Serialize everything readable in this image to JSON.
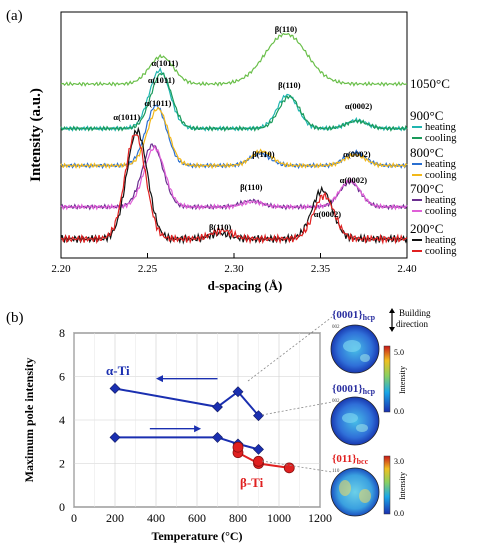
{
  "panel_a": {
    "label": "(a)",
    "xlabel": "d-spacing (Å)",
    "ylabel": "Intensity (a.u.)",
    "chart_data": {
      "type": "line",
      "xlim": [
        2.2,
        2.4
      ],
      "xticks": [
        "2.20",
        "2.25",
        "2.30",
        "2.35",
        "2.40"
      ],
      "temperatures": [
        {
          "label": "1050°C",
          "legend": [],
          "series": [
            {
              "name": "",
              "color": "#6abf4a",
              "peaks": [
                [
                  2.258,
                  0.55,
                  0.007
                ],
                [
                  2.33,
                  1.0,
                  0.012
                ]
              ],
              "base": 0.22
            }
          ]
        },
        {
          "label": "900°C",
          "legend": [
            "heating",
            "cooling"
          ],
          "series": [
            {
              "name": "heating",
              "color": "#1fb5b0",
              "peaks": [
                [
                  2.257,
                  1.0,
                  0.006
                ],
                [
                  2.331,
                  0.58,
                  0.006
                ],
                [
                  2.371,
                  0.14,
                  0.006
                ]
              ],
              "base": 0.06
            },
            {
              "name": "cooling",
              "color": "#1a9a5a",
              "peaks": [
                [
                  2.258,
                  0.95,
                  0.006
                ],
                [
                  2.332,
                  0.55,
                  0.006
                ],
                [
                  2.371,
                  0.13,
                  0.006
                ]
              ],
              "base": 0.06
            }
          ]
        },
        {
          "label": "800°C",
          "legend": [
            "heating",
            "cooling"
          ],
          "series": [
            {
              "name": "heating",
              "color": "#2a6fd0",
              "peaks": [
                [
                  2.255,
                  1.0,
                  0.006
                ],
                [
                  2.315,
                  0.2,
                  0.006
                ],
                [
                  2.37,
                  0.22,
                  0.006
                ]
              ],
              "base": 0.04
            },
            {
              "name": "cooling",
              "color": "#f2b81a",
              "peaks": [
                [
                  2.256,
                  0.95,
                  0.006
                ],
                [
                  2.316,
                  0.24,
                  0.006
                ],
                [
                  2.37,
                  0.18,
                  0.006
                ]
              ],
              "base": 0.04
            }
          ]
        },
        {
          "label": "700°C",
          "legend": [
            "heating",
            "cooling"
          ],
          "series": [
            {
              "name": "heating",
              "color": "#6a2f8f",
              "peaks": [
                [
                  2.253,
                  1.0,
                  0.006
                ],
                [
                  2.31,
                  0.1,
                  0.006
                ],
                [
                  2.367,
                  0.4,
                  0.006
                ]
              ],
              "base": 0.05
            },
            {
              "name": "cooling",
              "color": "#e060d8",
              "peaks": [
                [
                  2.254,
                  0.95,
                  0.006
                ],
                [
                  2.311,
                  0.08,
                  0.006
                ],
                [
                  2.367,
                  0.42,
                  0.006
                ]
              ],
              "base": 0.05
            }
          ]
        },
        {
          "label": "200°C",
          "legend": [
            "heating",
            "cooling"
          ],
          "series": [
            {
              "name": "heating",
              "color": "#111111",
              "peaks": [
                [
                  2.244,
                  1.0,
                  0.006
                ],
                [
                  2.292,
                  0.05,
                  0.006
                ],
                [
                  2.351,
                  0.45,
                  0.006
                ]
              ],
              "base": 0.01
            },
            {
              "name": "cooling",
              "color": "#e02020",
              "peaks": [
                [
                  2.243,
                  0.97,
                  0.006
                ],
                [
                  2.293,
                  0.08,
                  0.006
                ],
                [
                  2.352,
                  0.4,
                  0.006
                ]
              ],
              "base": 0.01
            }
          ]
        }
      ],
      "annotations": [
        {
          "text": "β(110)",
          "x": 2.33
        },
        {
          "text": "α(1011)",
          "x": 2.26
        },
        {
          "text": "α(1011)",
          "x": 2.258
        },
        {
          "text": "α(1011)",
          "x": 2.256
        },
        {
          "text": "β(110)",
          "x": 2.332
        },
        {
          "text": "α(0002)",
          "x": 2.372
        },
        {
          "text": "α(1011)",
          "x": 2.238
        },
        {
          "text": "β(110)",
          "x": 2.317
        },
        {
          "text": "α(0002)",
          "x": 2.371
        },
        {
          "text": "β(110)",
          "x": 2.31
        },
        {
          "text": "α(0002)",
          "x": 2.369
        },
        {
          "text": "β(110)",
          "x": 2.292
        },
        {
          "text": "α(0002)",
          "x": 2.354
        }
      ]
    }
  },
  "panel_b": {
    "label": "(b)",
    "xlabel": "Temperature (°C)",
    "ylabel": "Maximum pole intensity",
    "chart_data": {
      "type": "line",
      "xlim": [
        0,
        1200
      ],
      "ylim": [
        0,
        8
      ],
      "xticks": [
        "0",
        "200",
        "400",
        "600",
        "800",
        "1000",
        "1200"
      ],
      "yticks": [
        "0",
        "2",
        "4",
        "6",
        "8"
      ],
      "grid": true,
      "series": [
        {
          "name": "α-Ti",
          "color": "#1a2fb0",
          "x": [
            200,
            700,
            800,
            900
          ],
          "y": [
            5.45,
            4.6,
            5.3,
            4.2
          ]
        },
        {
          "name": "",
          "color": "#1a2fb0",
          "x": [
            200,
            700,
            800,
            900
          ],
          "y": [
            3.2,
            3.2,
            2.9,
            2.65
          ]
        },
        {
          "name": "β-Ti",
          "color": "#e02020",
          "x": [
            800,
            900,
            1050
          ],
          "y": [
            2.5,
            2.0,
            1.8
          ]
        }
      ],
      "extra_points": [
        {
          "x": 800,
          "y": 2.75,
          "color": "#e02020"
        },
        {
          "x": 900,
          "y": 2.1,
          "color": "#e02020"
        }
      ],
      "arrows": [
        {
          "direction": "left",
          "y": 5.9,
          "x_from": 700,
          "x_to": 400
        },
        {
          "direction": "right",
          "y": 3.6,
          "x_from": 370,
          "x_to": 620
        }
      ]
    },
    "labels": {
      "alpha": "α-Ti",
      "beta": "β-Ti"
    },
    "pole_figures": [
      {
        "title": "{0001}hcp",
        "title_main": "{0001}",
        "title_sub": "hcp",
        "color": "#2a2fa0",
        "corner": "002",
        "colorbar_max": "",
        "colorbar_min": "",
        "colorbar_label": ""
      },
      {
        "title": "{0001}hcp",
        "title_main": "{0001}",
        "title_sub": "hcp",
        "color": "#2a2fa0",
        "corner": "002",
        "colorbar_max": "5.0",
        "colorbar_min": "0.0",
        "colorbar_label": "Intensity"
      },
      {
        "title": "{011}bcc",
        "title_main": "{011}",
        "title_sub": "bcc",
        "color": "#e02020",
        "corner": "110",
        "colorbar_max": "3.0",
        "colorbar_min": "0.0",
        "colorbar_label": "Intensity"
      }
    ],
    "building_direction": [
      "Building",
      "direction"
    ],
    "colors": {
      "accent_blue": "#1a2fb0",
      "accent_red": "#e02020"
    }
  }
}
